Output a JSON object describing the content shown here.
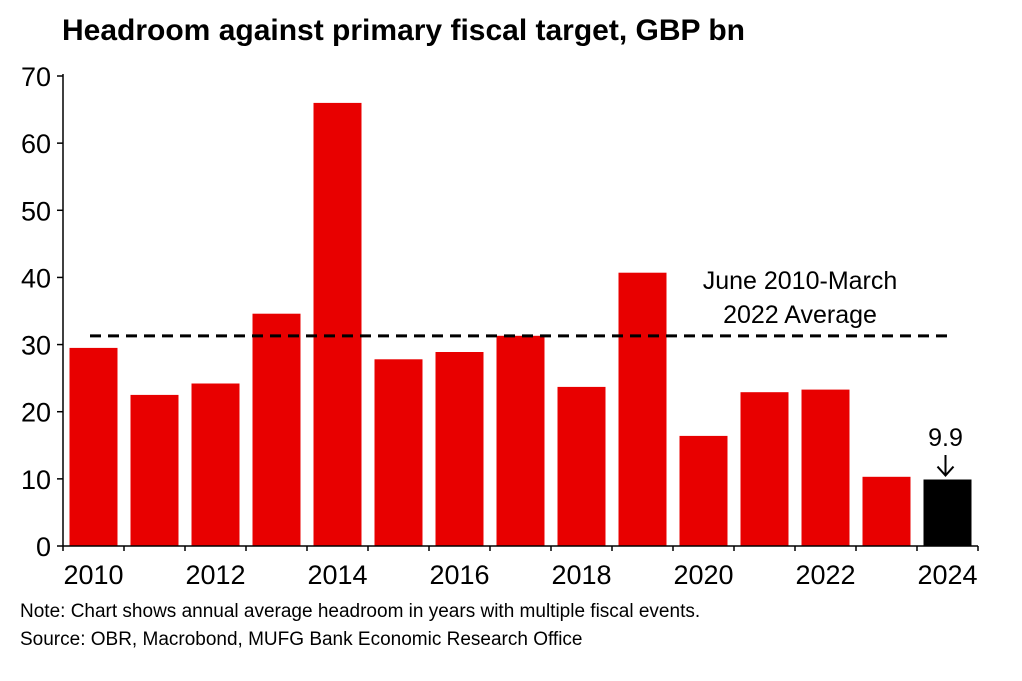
{
  "chart_data": {
    "type": "bar",
    "title": "Headroom against primary fiscal target, GBP bn",
    "categories": [
      "2010",
      "2011",
      "2012",
      "2013",
      "2014",
      "2015",
      "2016",
      "2017",
      "2018",
      "2019",
      "2020",
      "2021",
      "2022",
      "2023",
      "2024"
    ],
    "values": [
      29.5,
      22.5,
      24.2,
      34.6,
      66.0,
      27.8,
      28.9,
      31.3,
      23.7,
      40.7,
      16.4,
      22.9,
      23.3,
      10.3,
      9.9
    ],
    "x_tick_labels": [
      "2010",
      "2012",
      "2014",
      "2016",
      "2018",
      "2020",
      "2022",
      "2024"
    ],
    "y_tick_labels": [
      "0",
      "10",
      "20",
      "30",
      "40",
      "50",
      "60",
      "70"
    ],
    "ylim": [
      0,
      70
    ],
    "grid": false,
    "bar_color": "#e80000",
    "highlight_color": "#000000",
    "highlight_index": 14,
    "reference_line": {
      "value": 31.3,
      "label_line1": "June 2010-March",
      "label_line2": "2022 Average"
    },
    "annotation": {
      "text": "9.9",
      "index": 14
    }
  },
  "footer": {
    "note": "Note: Chart shows annual average headroom in years with multiple fiscal events.",
    "source": "Source: OBR, Macrobond, MUFG Bank Economic Research Office"
  }
}
